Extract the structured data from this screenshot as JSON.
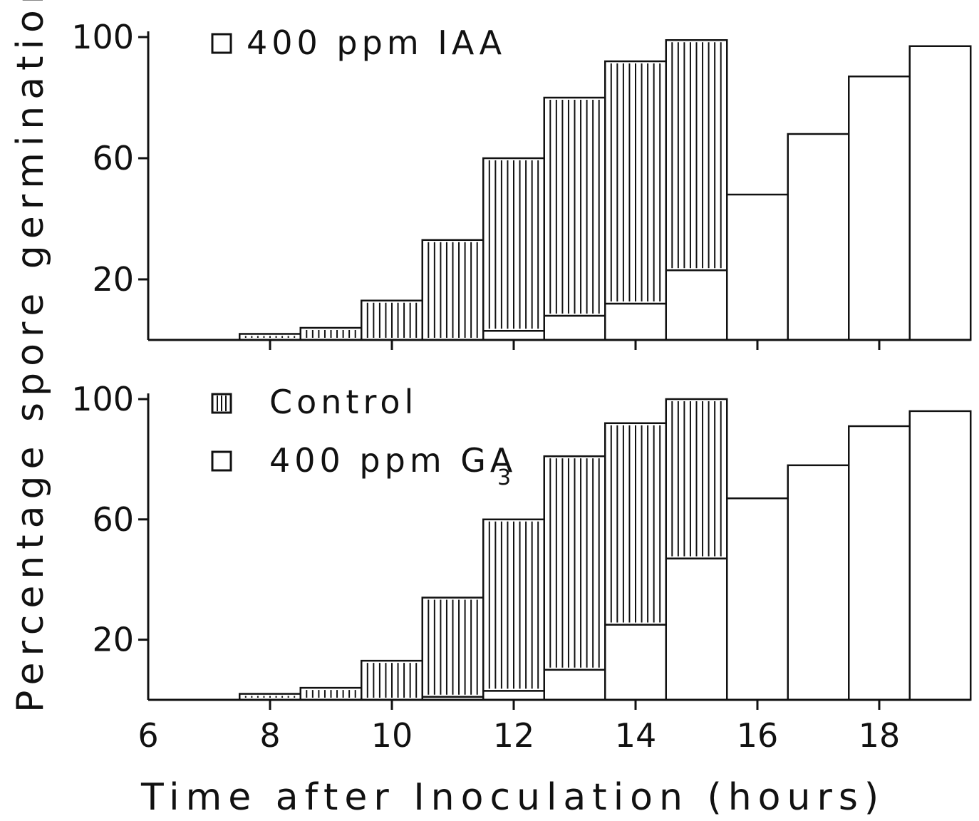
{
  "chart_data": [
    {
      "type": "bar",
      "panel": "top",
      "x": [
        7,
        8,
        9,
        10,
        11,
        12,
        13,
        14,
        15,
        16,
        17,
        18,
        19
      ],
      "ylim": [
        0,
        100
      ],
      "xlim": [
        6,
        19.5
      ],
      "yticks": [
        20,
        60,
        100
      ],
      "ytick_labels": [
        "20",
        "60",
        "100"
      ],
      "legend": [
        "400 ppm IAA"
      ],
      "series": [
        {
          "name": "Control",
          "pattern": "vertical-hatch",
          "values": [
            0,
            2,
            4,
            13,
            33,
            60,
            80,
            92,
            99,
            null,
            null,
            null,
            null
          ]
        },
        {
          "name": "400 ppm IAA",
          "pattern": "open",
          "values": [
            0,
            0,
            0,
            0,
            0,
            3,
            8,
            12,
            23,
            48,
            68,
            87,
            97
          ]
        }
      ]
    },
    {
      "type": "bar",
      "panel": "bottom",
      "x": [
        7,
        8,
        9,
        10,
        11,
        12,
        13,
        14,
        15,
        16,
        17,
        18,
        19
      ],
      "ylim": [
        0,
        100
      ],
      "xlim": [
        6,
        19.5
      ],
      "yticks": [
        20,
        60,
        100
      ],
      "ytick_labels": [
        "20",
        "60",
        "100"
      ],
      "xticks": [
        6,
        8,
        10,
        12,
        14,
        16,
        18
      ],
      "xtick_labels": [
        "6",
        "8",
        "10",
        "12",
        "14",
        "16",
        "18"
      ],
      "legend": [
        "Control",
        "400 ppm GA",
        "3"
      ],
      "series": [
        {
          "name": "Control",
          "pattern": "vertical-hatch",
          "values": [
            0,
            2,
            4,
            13,
            34,
            60,
            81,
            92,
            100,
            null,
            null,
            null,
            null
          ]
        },
        {
          "name": "400 ppm GA3",
          "pattern": "open",
          "values": [
            0,
            0,
            0,
            0,
            1,
            3,
            10,
            25,
            47,
            67,
            78,
            91,
            96
          ]
        }
      ]
    }
  ],
  "ylabel": "Percentage spore germination",
  "xlabel": "Time after Inoculation (hours)",
  "colors": {
    "ink": "#111111",
    "background": "#ffffff"
  }
}
